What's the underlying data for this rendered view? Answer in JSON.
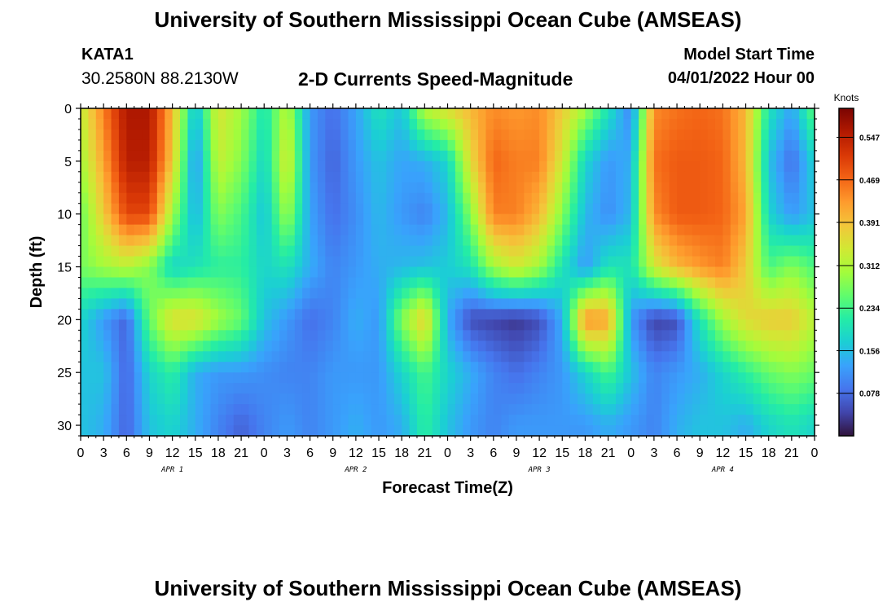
{
  "page": {
    "title": "University of Southern Mississippi Ocean Cube (AMSEAS)",
    "title_repeat": "University of Southern Mississippi Ocean Cube (AMSEAS)",
    "station_id": "KATA1",
    "station_coords": "30.2580N  88.2130W",
    "model_start_label": "Model Start Time",
    "model_start_value": "04/01/2022 Hour 00"
  },
  "chart_data": {
    "type": "heatmap",
    "title": "2-D Currents Speed-Magnitude",
    "xlabel": "Forecast Time(Z)",
    "ylabel": "Depth (ft)",
    "x_range_hours": [
      0,
      96
    ],
    "ylim": [
      0,
      31
    ],
    "y_ticks": [
      0,
      5,
      10,
      15,
      20,
      25,
      30
    ],
    "x_tick_labels": [
      "0",
      "3",
      "6",
      "9",
      "12",
      "15",
      "18",
      "21",
      "0",
      "3",
      "6",
      "9",
      "12",
      "15",
      "18",
      "21",
      "0",
      "3",
      "6",
      "9",
      "12",
      "15",
      "18",
      "21",
      "0",
      "3",
      "6",
      "9",
      "12",
      "15",
      "18",
      "21",
      "0"
    ],
    "day_labels": [
      {
        "text": "APR 1",
        "hour": 12
      },
      {
        "text": "APR 2",
        "hour": 36
      },
      {
        "text": "APR 3",
        "hour": 60
      },
      {
        "text": "APR 4",
        "hour": 84
      }
    ],
    "colorbar": {
      "label": "Knots",
      "min": 0,
      "max": 0.6,
      "ticks": [
        "0.547",
        "0.469",
        "0.391",
        "0.312",
        "0.234",
        "0.156",
        "0.078"
      ]
    },
    "colors": [
      "#30123b",
      "#4145ab",
      "#4675ed",
      "#39a2fc",
      "#1bcfd4",
      "#24eca6",
      "#61fc6c",
      "#a4fc3b",
      "#d1e834",
      "#f3c63a",
      "#fe9b2d",
      "#f36315",
      "#d93806",
      "#b11901",
      "#7a0402"
    ],
    "depth_levels_ft": [
      0,
      5,
      10,
      15,
      20,
      25,
      30
    ],
    "hours": [
      0,
      3,
      6,
      9,
      12,
      15,
      18,
      21,
      24,
      27,
      30,
      33,
      36,
      39,
      42,
      45,
      48,
      51,
      54,
      57,
      60,
      63,
      66,
      69,
      72,
      75,
      78,
      81,
      84,
      87,
      90,
      93,
      96
    ],
    "values_knots": [
      [
        0.33,
        0.45,
        0.56,
        0.56,
        0.4,
        0.15,
        0.35,
        0.3,
        0.2,
        0.32,
        0.12,
        0.08,
        0.13,
        0.2,
        0.16,
        0.32,
        0.36,
        0.4,
        0.44,
        0.43,
        0.44,
        0.38,
        0.3,
        0.2,
        0.1,
        0.44,
        0.46,
        0.47,
        0.46,
        0.4,
        0.2,
        0.13,
        0.26
      ],
      [
        0.3,
        0.42,
        0.55,
        0.55,
        0.38,
        0.11,
        0.33,
        0.28,
        0.18,
        0.35,
        0.12,
        0.07,
        0.12,
        0.16,
        0.13,
        0.14,
        0.18,
        0.36,
        0.47,
        0.45,
        0.45,
        0.34,
        0.18,
        0.12,
        0.14,
        0.46,
        0.48,
        0.48,
        0.47,
        0.4,
        0.16,
        0.08,
        0.18
      ],
      [
        0.26,
        0.38,
        0.5,
        0.5,
        0.3,
        0.14,
        0.28,
        0.24,
        0.16,
        0.3,
        0.13,
        0.08,
        0.11,
        0.15,
        0.12,
        0.1,
        0.15,
        0.28,
        0.45,
        0.45,
        0.4,
        0.28,
        0.15,
        0.11,
        0.15,
        0.44,
        0.48,
        0.48,
        0.47,
        0.42,
        0.18,
        0.12,
        0.16
      ],
      [
        0.27,
        0.3,
        0.32,
        0.28,
        0.18,
        0.2,
        0.22,
        0.22,
        0.18,
        0.2,
        0.14,
        0.1,
        0.12,
        0.14,
        0.15,
        0.16,
        0.17,
        0.2,
        0.3,
        0.34,
        0.3,
        0.2,
        0.12,
        0.2,
        0.2,
        0.34,
        0.4,
        0.43,
        0.45,
        0.38,
        0.24,
        0.28,
        0.24
      ],
      [
        0.18,
        0.12,
        0.07,
        0.26,
        0.36,
        0.36,
        0.3,
        0.26,
        0.16,
        0.12,
        0.08,
        0.1,
        0.14,
        0.12,
        0.28,
        0.38,
        0.14,
        0.05,
        0.04,
        0.03,
        0.05,
        0.14,
        0.44,
        0.42,
        0.12,
        0.04,
        0.05,
        0.2,
        0.3,
        0.36,
        0.38,
        0.38,
        0.32
      ],
      [
        0.16,
        0.16,
        0.07,
        0.18,
        0.22,
        0.14,
        0.12,
        0.12,
        0.11,
        0.1,
        0.1,
        0.12,
        0.12,
        0.12,
        0.18,
        0.24,
        0.18,
        0.14,
        0.1,
        0.08,
        0.1,
        0.12,
        0.18,
        0.24,
        0.16,
        0.1,
        0.12,
        0.14,
        0.18,
        0.22,
        0.26,
        0.28,
        0.26
      ],
      [
        0.16,
        0.14,
        0.07,
        0.16,
        0.18,
        0.14,
        0.1,
        0.07,
        0.1,
        0.12,
        0.1,
        0.12,
        0.14,
        0.12,
        0.14,
        0.22,
        0.16,
        0.12,
        0.1,
        0.12,
        0.12,
        0.12,
        0.12,
        0.14,
        0.12,
        0.1,
        0.14,
        0.16,
        0.16,
        0.14,
        0.18,
        0.2,
        0.18
      ]
    ]
  }
}
